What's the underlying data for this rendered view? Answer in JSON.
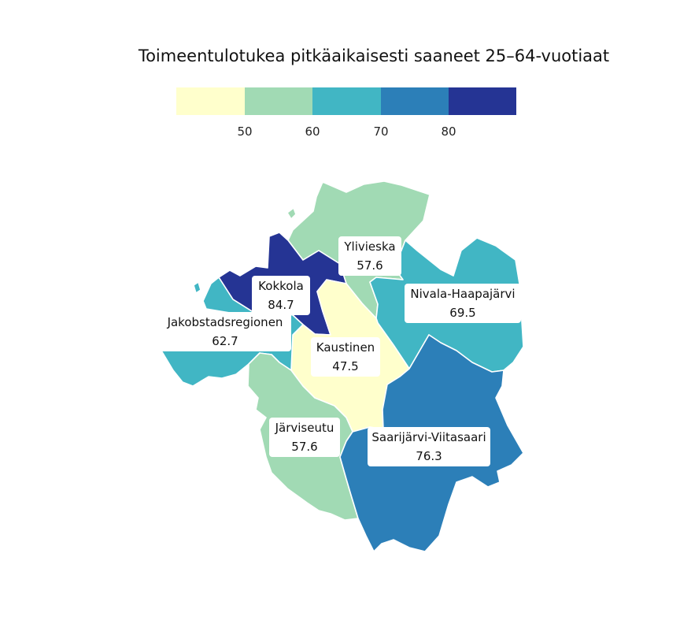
{
  "map": {
    "title": "Toimeentulotukea pitkäaikaisesti saaneet 25–64-vuotiaat",
    "legend": {
      "colors": [
        "#ffffcc",
        "#a1dab4",
        "#41b6c4",
        "#2c7fb8",
        "#253494"
      ],
      "ticks": [
        "50",
        "60",
        "70",
        "80"
      ],
      "breaks": [
        50,
        60,
        70,
        80
      ]
    },
    "regions": [
      {
        "name": "Ylivieska",
        "value": "57.6",
        "color": "#a1dab4"
      },
      {
        "name": "Nivala-Haapajärvi",
        "value": "69.5",
        "color": "#41b6c4"
      },
      {
        "name": "Kokkola",
        "value": "84.7",
        "color": "#253494"
      },
      {
        "name": "Jakobstadsregionen",
        "value": "62.7",
        "color": "#41b6c4"
      },
      {
        "name": "Kaustinen",
        "value": "47.5",
        "color": "#ffffcc"
      },
      {
        "name": "Järviseutu",
        "value": "57.6",
        "color": "#a1dab4"
      },
      {
        "name": "Saarijärvi-Viitasaari",
        "value": "76.3",
        "color": "#2c7fb8"
      }
    ]
  }
}
